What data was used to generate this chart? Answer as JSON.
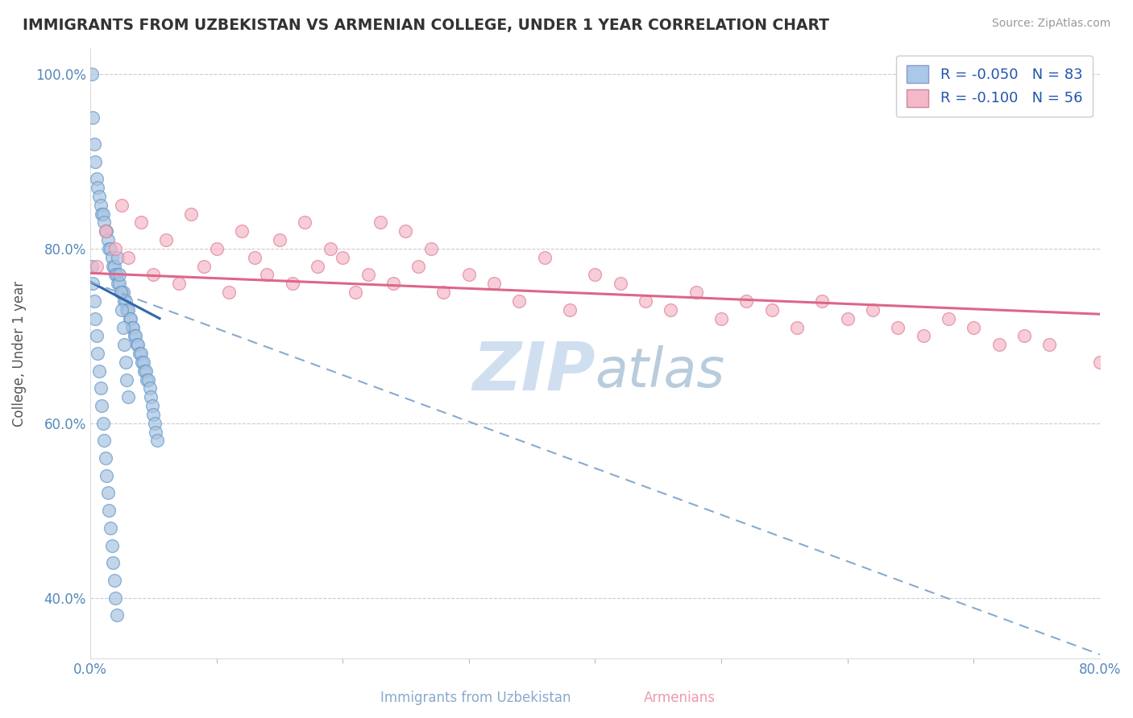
{
  "title": "IMMIGRANTS FROM UZBEKISTAN VS ARMENIAN COLLEGE, UNDER 1 YEAR CORRELATION CHART",
  "source": "Source: ZipAtlas.com",
  "xlabel_blue": "Immigrants from Uzbekistan",
  "xlabel_pink": "Armenians",
  "ylabel": "College, Under 1 year",
  "legend_blue_R": "-0.050",
  "legend_blue_N": "83",
  "legend_pink_R": "-0.100",
  "legend_pink_N": "56",
  "xlim": [
    0.0,
    0.8
  ],
  "ylim": [
    0.33,
    1.03
  ],
  "yticks": [
    0.4,
    0.6,
    0.8,
    1.0
  ],
  "background_color": "#ffffff",
  "grid_color": "#cccccc",
  "blue_color": "#aac4e0",
  "pink_color": "#f4b8c8",
  "blue_edge": "#6699cc",
  "pink_edge": "#e08099",
  "title_color": "#333333",
  "source_color": "#999999",
  "watermark_color": "#d0dff0",
  "blue_scatter_x": [
    0.001,
    0.002,
    0.003,
    0.004,
    0.005,
    0.006,
    0.007,
    0.008,
    0.009,
    0.01,
    0.011,
    0.012,
    0.013,
    0.014,
    0.015,
    0.016,
    0.017,
    0.018,
    0.019,
    0.02,
    0.021,
    0.022,
    0.023,
    0.024,
    0.025,
    0.026,
    0.027,
    0.028,
    0.029,
    0.03,
    0.031,
    0.032,
    0.033,
    0.034,
    0.035,
    0.036,
    0.037,
    0.038,
    0.039,
    0.04,
    0.041,
    0.042,
    0.043,
    0.044,
    0.045,
    0.046,
    0.047,
    0.048,
    0.049,
    0.05,
    0.051,
    0.052,
    0.053,
    0.001,
    0.002,
    0.003,
    0.004,
    0.005,
    0.006,
    0.007,
    0.008,
    0.009,
    0.01,
    0.011,
    0.012,
    0.013,
    0.014,
    0.015,
    0.016,
    0.017,
    0.018,
    0.019,
    0.02,
    0.021,
    0.022,
    0.023,
    0.024,
    0.025,
    0.026,
    0.027,
    0.028,
    0.029,
    0.03
  ],
  "blue_scatter_y": [
    1.0,
    0.95,
    0.92,
    0.9,
    0.88,
    0.87,
    0.86,
    0.85,
    0.84,
    0.84,
    0.83,
    0.82,
    0.82,
    0.81,
    0.8,
    0.8,
    0.79,
    0.78,
    0.78,
    0.77,
    0.77,
    0.76,
    0.76,
    0.75,
    0.75,
    0.75,
    0.74,
    0.74,
    0.73,
    0.73,
    0.72,
    0.72,
    0.71,
    0.71,
    0.7,
    0.7,
    0.69,
    0.69,
    0.68,
    0.68,
    0.67,
    0.67,
    0.66,
    0.66,
    0.65,
    0.65,
    0.64,
    0.63,
    0.62,
    0.61,
    0.6,
    0.59,
    0.58,
    0.78,
    0.76,
    0.74,
    0.72,
    0.7,
    0.68,
    0.66,
    0.64,
    0.62,
    0.6,
    0.58,
    0.56,
    0.54,
    0.52,
    0.5,
    0.48,
    0.46,
    0.44,
    0.42,
    0.4,
    0.38,
    0.79,
    0.77,
    0.75,
    0.73,
    0.71,
    0.69,
    0.67,
    0.65,
    0.63
  ],
  "pink_scatter_x": [
    0.005,
    0.012,
    0.02,
    0.025,
    0.03,
    0.04,
    0.05,
    0.06,
    0.07,
    0.08,
    0.09,
    0.1,
    0.11,
    0.12,
    0.13,
    0.14,
    0.15,
    0.16,
    0.17,
    0.18,
    0.19,
    0.2,
    0.21,
    0.22,
    0.23,
    0.24,
    0.25,
    0.26,
    0.27,
    0.28,
    0.3,
    0.32,
    0.34,
    0.36,
    0.38,
    0.4,
    0.42,
    0.44,
    0.46,
    0.48,
    0.5,
    0.52,
    0.54,
    0.56,
    0.58,
    0.6,
    0.62,
    0.64,
    0.66,
    0.68,
    0.7,
    0.72,
    0.74,
    0.76,
    0.78,
    0.8
  ],
  "pink_scatter_y": [
    0.78,
    0.82,
    0.8,
    0.85,
    0.79,
    0.83,
    0.77,
    0.81,
    0.76,
    0.84,
    0.78,
    0.8,
    0.75,
    0.82,
    0.79,
    0.77,
    0.81,
    0.76,
    0.83,
    0.78,
    0.8,
    0.79,
    0.75,
    0.77,
    0.83,
    0.76,
    0.82,
    0.78,
    0.8,
    0.75,
    0.77,
    0.76,
    0.74,
    0.79,
    0.73,
    0.77,
    0.76,
    0.74,
    0.73,
    0.75,
    0.72,
    0.74,
    0.73,
    0.71,
    0.74,
    0.72,
    0.73,
    0.71,
    0.7,
    0.72,
    0.71,
    0.69,
    0.7,
    0.69,
    1.0,
    0.67
  ],
  "blue_line_x": [
    0.0,
    0.055
  ],
  "blue_line_y_start": 0.762,
  "blue_line_y_end": 0.72,
  "pink_line_x": [
    0.0,
    0.8
  ],
  "pink_line_y_start": 0.772,
  "pink_line_y_end": 0.725,
  "dashed_line_x": [
    0.0,
    0.8
  ],
  "dashed_line_y_start": 0.762,
  "dashed_line_y_end": 0.335
}
